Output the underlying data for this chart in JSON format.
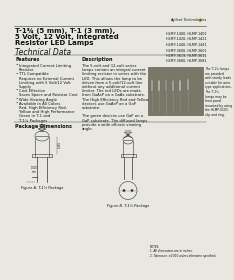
{
  "bg_color": "#e8e8e0",
  "title_line1": "T-1¾ (5 mm), T-1 (3 mm),",
  "title_line2": "5 Volt, 12 Volt, Integrated",
  "title_line3": "Resistor LED Lamps",
  "subtitle": "Technical Data",
  "brand": "Agilent Technologies",
  "part_numbers": [
    "HLMP-1400, HLMP-1401",
    "HLMP-1420, HLMP-1421",
    "HLMP-1440, HLMP-1441",
    "HLMP-3600, HLMP-3601",
    "HLMP-3619, HLMP-3611",
    "HLMP-3680, HLMP-3681"
  ],
  "features_title": "Features",
  "feature_items": [
    "Integrated Current Limiting",
    "Resistor",
    "TTL Compatible",
    "Requires no External Current",
    "Limiting with 5 Volt/12 Volt",
    "Supply",
    "Cost Effective",
    "Saves Space and Resistor Cost",
    "Wide Viewing Angle",
    "Available in All Colors",
    "Red, High Efficiency Red,",
    "Yellow and High Performance",
    "Green in T-1 and",
    "T-1¾ Packages"
  ],
  "feature_bullets": [
    0,
    2,
    6,
    8,
    9
  ],
  "desc_title": "Description",
  "desc_lines": [
    "The 5-volt and 12-volt series",
    "lamps contain an integral current",
    "limiting resistor in series with the",
    "LED. This allows the lamp to be",
    "driven from a 5-volt/12-volt line",
    "without any additional current",
    "limiter. The red LEDs are made",
    "from GaAsP on a GaAs substrate.",
    "The High Efficiency Red and Yellow",
    "devices use GaAsP on a GaP",
    "substrate.",
    "",
    "The green devices use GaP on a",
    "GaP substrate. The diffused lamps",
    "provide a wide off-axis viewing",
    "angle."
  ],
  "photo_caption": "The T-1¾ lamps are provided\nwith sturdy leads suitable for area\ntype applications. The T-1¾\nlamps may be front panel\nmounted by using the HLMP-0103\nclip and ring.",
  "pkg_title": "Package Dimensions",
  "fig_a_caption": "Figure A. T-1¾ Package",
  "fig_b_caption": "Figure B. T-1¾ Package",
  "text_color": "#111111",
  "line_color": "#333333",
  "title_fontsize": 5.0,
  "body_fontsize": 3.0,
  "small_fontsize": 2.5
}
